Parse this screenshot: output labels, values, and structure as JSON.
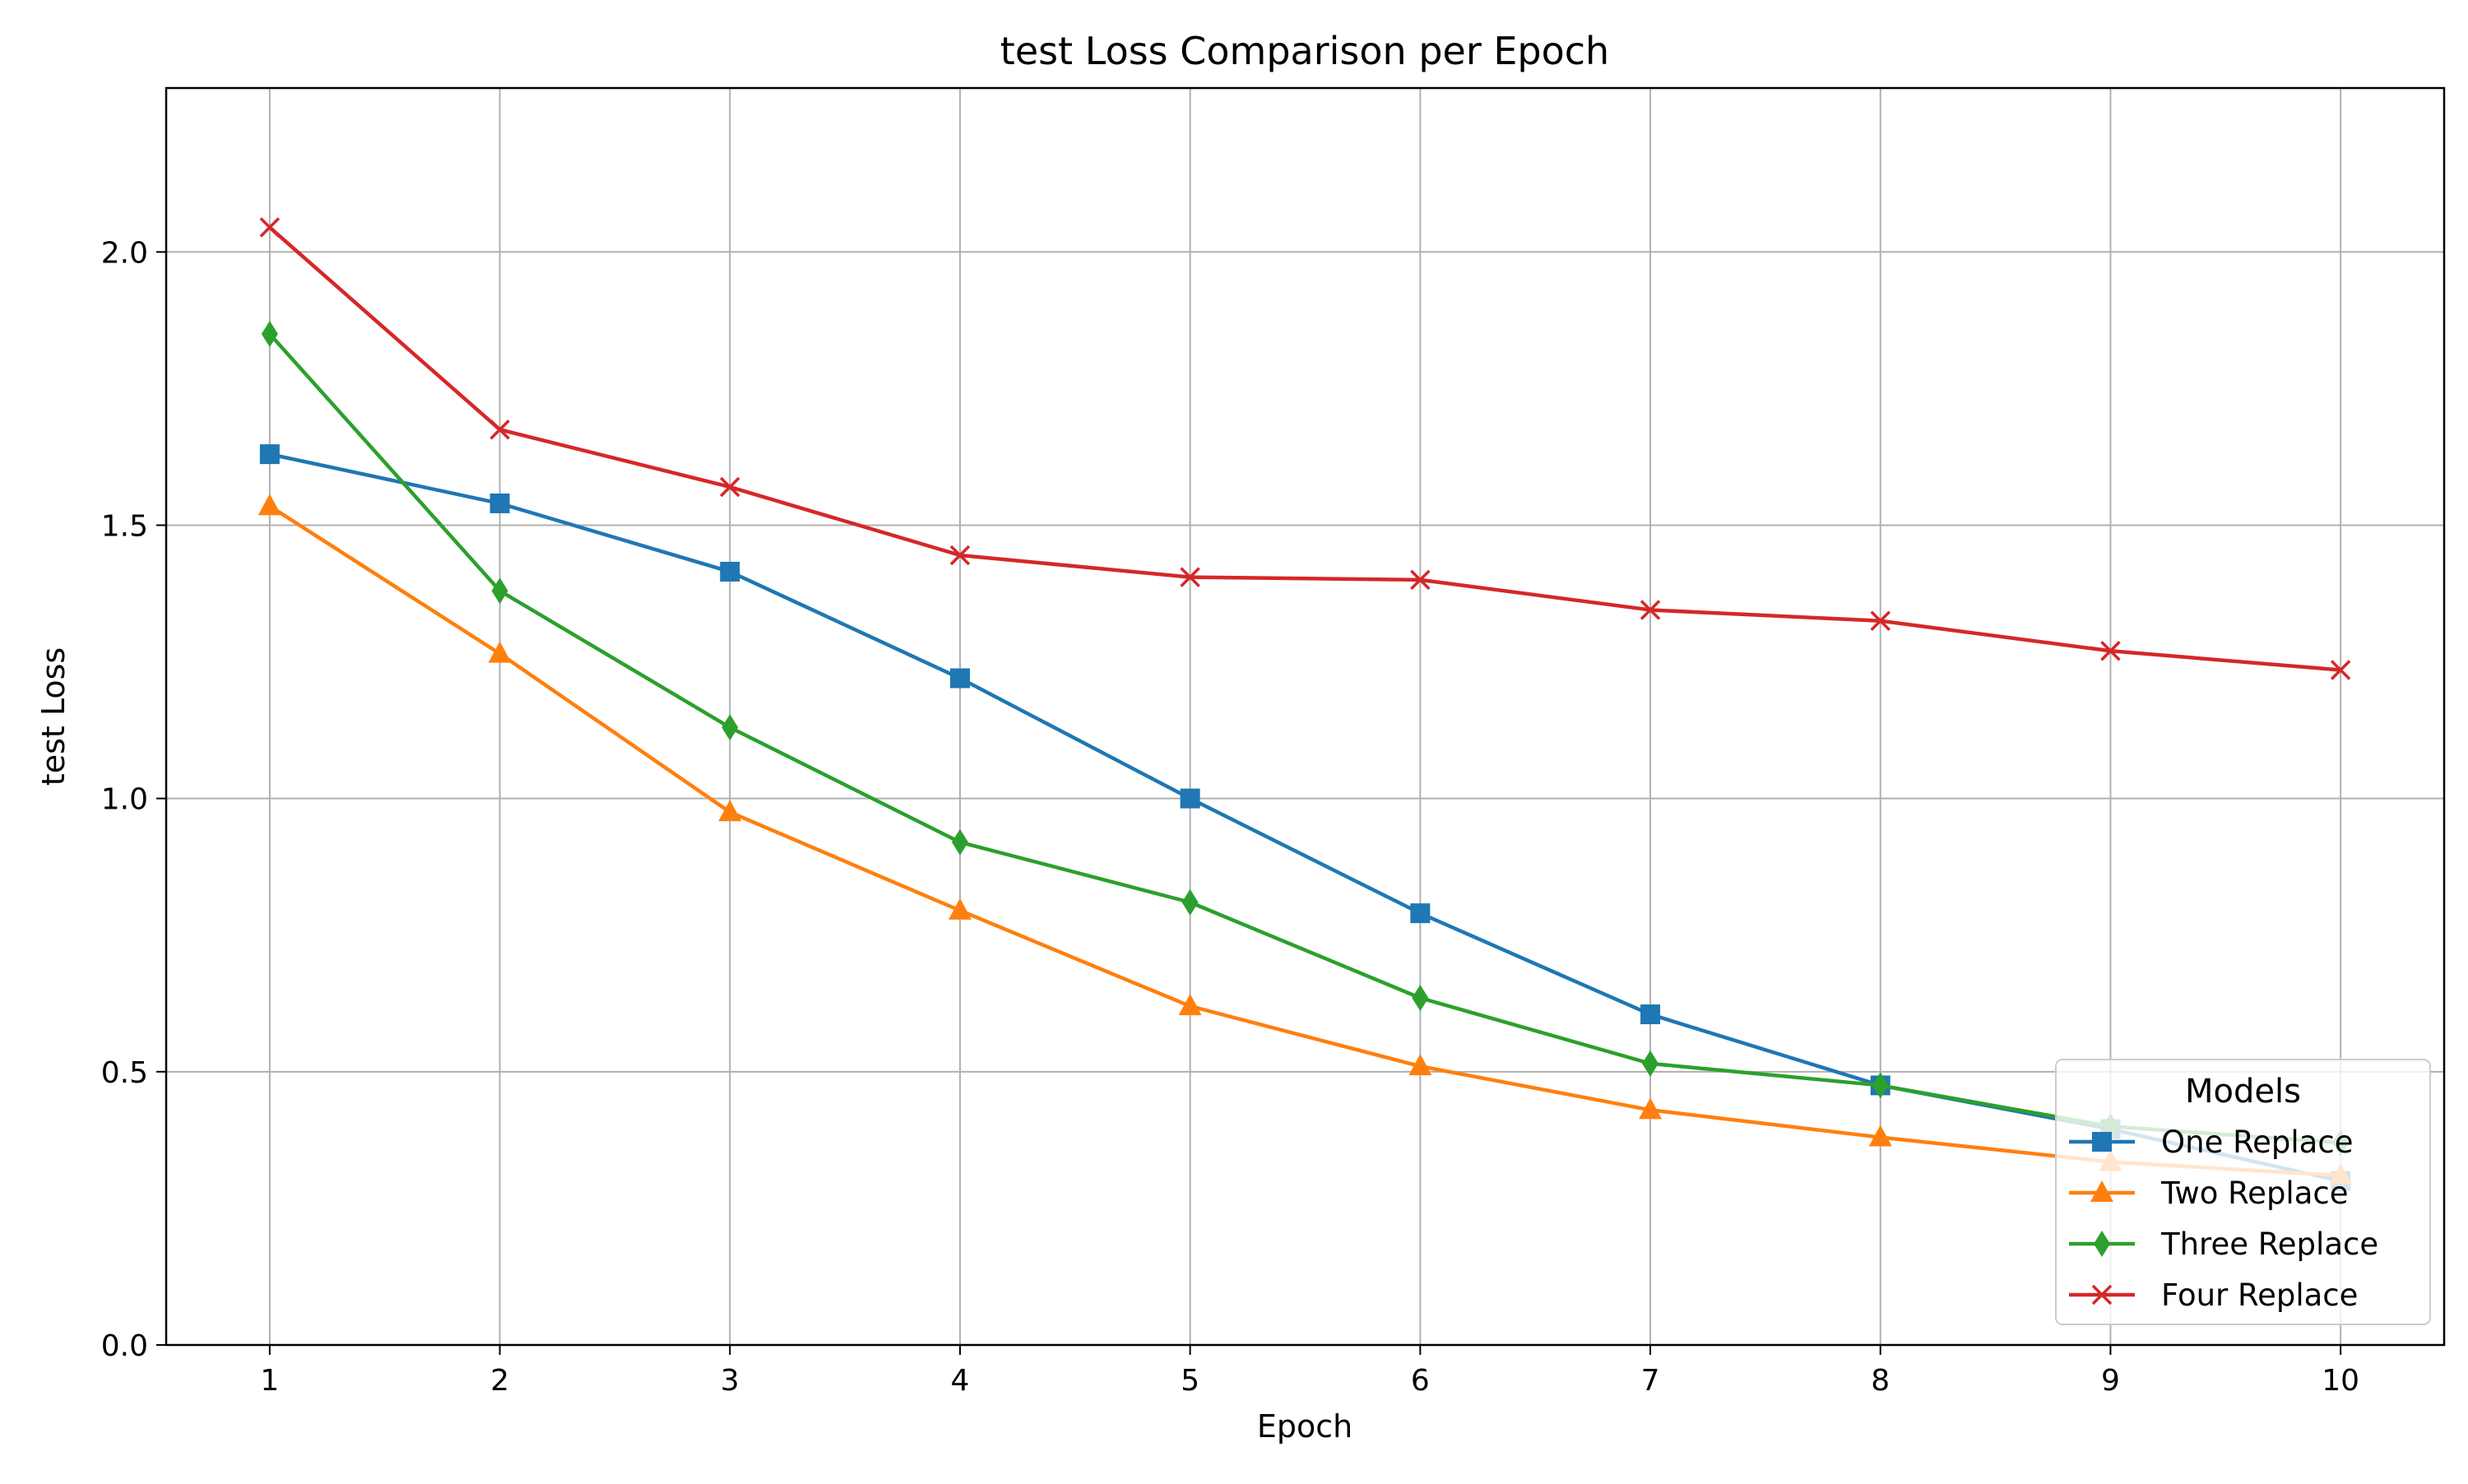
{
  "chart_data": {
    "type": "line",
    "title": "test Loss Comparison per Epoch",
    "xlabel": "Epoch",
    "ylabel": "test Loss",
    "x": [
      1,
      2,
      3,
      4,
      5,
      6,
      7,
      8,
      9,
      10
    ],
    "xlim": [
      0.55,
      10.45
    ],
    "ylim": [
      0,
      2.3
    ],
    "yticks": [
      0.0,
      0.5,
      1.0,
      1.5,
      2.0
    ],
    "ytick_labels": [
      "0.0",
      "0.5",
      "1.0",
      "1.5",
      "2.0"
    ],
    "xticks": [
      1,
      2,
      3,
      4,
      5,
      6,
      7,
      8,
      9,
      10
    ],
    "xtick_labels": [
      "1",
      "2",
      "3",
      "4",
      "5",
      "6",
      "7",
      "8",
      "9",
      "10"
    ],
    "grid": true,
    "legend": {
      "title": "Models",
      "placement": "lower-right"
    },
    "series": [
      {
        "name": "One Replace",
        "color": "#1f77b4",
        "marker": "square",
        "values": [
          1.63,
          1.54,
          1.415,
          1.22,
          1.0,
          0.79,
          0.605,
          0.475,
          0.395,
          0.3
        ]
      },
      {
        "name": "Two Replace",
        "color": "#ff7f0e",
        "marker": "triangle",
        "values": [
          1.535,
          1.265,
          0.975,
          0.795,
          0.62,
          0.51,
          0.43,
          0.38,
          0.335,
          0.31
        ]
      },
      {
        "name": "Three Replace",
        "color": "#2ca02c",
        "marker": "diamond",
        "values": [
          1.85,
          1.38,
          1.13,
          0.92,
          0.81,
          0.635,
          0.515,
          0.475,
          0.4,
          0.37
        ]
      },
      {
        "name": "Four Replace",
        "color": "#d62728",
        "marker": "x",
        "values": [
          2.045,
          1.675,
          1.57,
          1.445,
          1.405,
          1.4,
          1.345,
          1.325,
          1.27,
          1.235
        ]
      }
    ]
  }
}
